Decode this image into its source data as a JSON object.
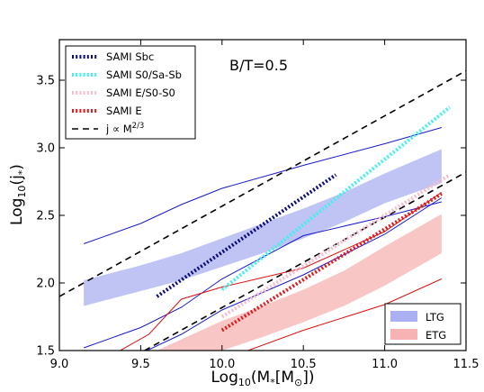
{
  "chart_data": {
    "type": "line",
    "xlabel_main": "Log",
    "xlabel_sub": "10",
    "xlabel_rest": "(M",
    "xlabel_sub2": "*",
    "xlabel_end": "[M",
    "xlabel_sun": "⊙",
    "xlabel_close": "])",
    "ylabel_main": "Log",
    "ylabel_sub": "10",
    "ylabel_rest": "(j",
    "ylabel_sub2": "*",
    "ylabel_close": ")",
    "xlim": [
      9.0,
      11.5
    ],
    "ylim": [
      1.5,
      3.8
    ],
    "xticks": [
      "9.0",
      "9.5",
      "10.0",
      "10.5",
      "11.0",
      "11.5"
    ],
    "yticks": [
      "1.5",
      "2.0",
      "2.5",
      "3.0",
      "3.5"
    ],
    "annotation": "B/T=0.5",
    "bands": [
      {
        "name": "LTG",
        "color": "#aab0f2",
        "x": [
          9.15,
          9.5,
          9.75,
          10.0,
          10.25,
          10.5,
          10.75,
          11.0,
          11.35
        ],
        "lower": [
          1.83,
          1.94,
          2.02,
          2.12,
          2.22,
          2.33,
          2.45,
          2.59,
          2.74
        ],
        "upper": [
          2.02,
          2.13,
          2.22,
          2.33,
          2.44,
          2.55,
          2.67,
          2.81,
          2.99
        ]
      },
      {
        "name": "ETG",
        "color": "#f7b3b3",
        "x": [
          9.6,
          10.0,
          10.25,
          10.5,
          10.75,
          11.0,
          11.35
        ],
        "lower": [
          1.5,
          1.5,
          1.6,
          1.71,
          1.83,
          1.98,
          2.22
        ],
        "upper": [
          1.5,
          1.72,
          1.83,
          1.95,
          2.09,
          2.27,
          2.51
        ]
      }
    ],
    "lines": [
      {
        "color": "#1a1acc",
        "x": [
          9.15,
          9.5,
          9.75,
          10.0,
          10.5,
          11.0,
          11.35
        ],
        "y": [
          2.29,
          2.44,
          2.58,
          2.7,
          2.87,
          3.03,
          3.15
        ]
      },
      {
        "color": "#1a1acc",
        "x": [
          9.15,
          9.5,
          9.75,
          10.0,
          10.5,
          11.0,
          11.35
        ],
        "y": [
          1.52,
          1.67,
          1.82,
          2.03,
          2.35,
          2.49,
          2.6
        ]
      },
      {
        "color": "#1a1acc",
        "x": [
          9.45,
          9.75,
          10.0,
          10.5,
          11.0,
          11.35
        ],
        "y": [
          1.45,
          1.62,
          1.8,
          2.06,
          2.36,
          2.63
        ]
      },
      {
        "color": "#dd1111",
        "x": [
          9.3,
          9.55,
          9.75,
          10.0,
          10.5,
          11.0,
          11.35
        ],
        "y": [
          1.45,
          1.62,
          1.88,
          1.97,
          2.11,
          2.38,
          2.67
        ]
      },
      {
        "color": "#dd1111",
        "x": [
          9.7,
          10.0,
          10.5,
          11.0,
          11.35
        ],
        "y": [
          1.3,
          1.43,
          1.65,
          1.84,
          2.03
        ]
      }
    ],
    "dashed_lines": [
      {
        "color": "#000000",
        "x": [
          9.0,
          11.5
        ],
        "y": [
          1.9,
          3.57
        ]
      },
      {
        "color": "#000000",
        "x": [
          9.0,
          11.5
        ],
        "y": [
          1.15,
          2.82
        ]
      }
    ],
    "sami_series": [
      {
        "name": "SAMI Sbc",
        "color": "#0b0b7a",
        "x": [
          9.6,
          10.7
        ],
        "y": [
          1.9,
          2.8
        ]
      },
      {
        "name": "SAMI S0/Sa-Sb",
        "color": "#3ef0ee",
        "x": [
          10.0,
          11.4
        ],
        "y": [
          1.95,
          3.3
        ]
      },
      {
        "name": "SAMI E/S0-S0",
        "color": "#f6bccc",
        "x": [
          10.0,
          11.4
        ],
        "y": [
          1.75,
          2.8
        ]
      },
      {
        "name": "SAMI E",
        "color": "#e01818",
        "x": [
          10.0,
          11.35
        ],
        "y": [
          1.65,
          2.66
        ]
      }
    ],
    "legend_top": {
      "placement": "top-left",
      "entries": [
        {
          "label": "SAMI Sbc",
          "color": "#0b0b7a",
          "style": "dotted"
        },
        {
          "label": "SAMI S0/Sa-Sb",
          "color": "#3ef0ee",
          "style": "dotted"
        },
        {
          "label": "SAMI E/S0-S0",
          "color": "#f6bccc",
          "style": "dotted"
        },
        {
          "label": "SAMI E",
          "color": "#e01818",
          "style": "dotted"
        },
        {
          "label": "j ∝ M",
          "color": "#000000",
          "style": "dashed",
          "sup": "2/3"
        }
      ]
    },
    "legend_bottom": {
      "placement": "bottom-right",
      "entries": [
        {
          "label": "LTG",
          "color": "#aab0f2"
        },
        {
          "label": "ETG",
          "color": "#f7b3b3"
        }
      ]
    }
  }
}
